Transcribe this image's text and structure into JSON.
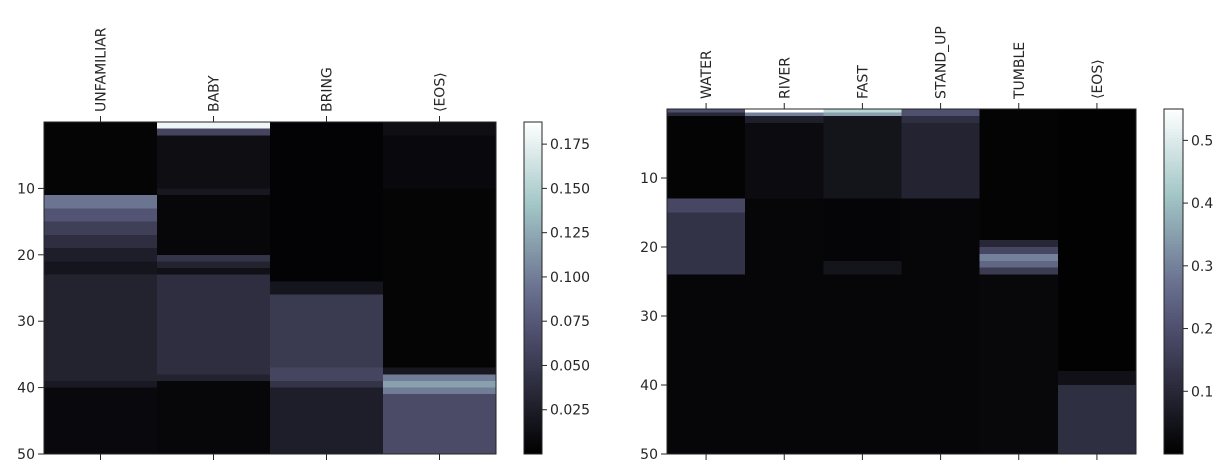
{
  "chart_data": [
    {
      "type": "heatmap",
      "title": "",
      "colormap": "bone",
      "x_categories": [
        "UNFAMILIAR",
        "BABY",
        "BRING",
        "⟨EOS⟩"
      ],
      "y_range": [
        0,
        50
      ],
      "y_ticks": [
        10,
        20,
        30,
        40,
        50
      ],
      "colorbar": {
        "range": [
          0,
          0.1875
        ],
        "ticks": [
          0.025,
          0.05,
          0.075,
          0.1,
          0.125,
          0.15,
          0.175
        ],
        "tick_labels": [
          "0.025",
          "0.050",
          "0.075",
          "0.100",
          "0.125",
          "0.150",
          "0.175"
        ]
      },
      "columns": [
        {
          "label": "UNFAMILIAR",
          "segments": [
            [
              0,
              11,
              0.004
            ],
            [
              11,
              13,
              0.095
            ],
            [
              13,
              15,
              0.072
            ],
            [
              15,
              17,
              0.055
            ],
            [
              17,
              19,
              0.04
            ],
            [
              19,
              21,
              0.026
            ],
            [
              21,
              23,
              0.018
            ],
            [
              23,
              39,
              0.03
            ],
            [
              39,
              40,
              0.022
            ],
            [
              40,
              50,
              0.008
            ]
          ]
        },
        {
          "label": "BABY",
          "segments": [
            [
              0,
              1,
              0.18
            ],
            [
              1,
              2,
              0.06
            ],
            [
              2,
              10,
              0.012
            ],
            [
              10,
              11,
              0.02
            ],
            [
              11,
              20,
              0.006
            ],
            [
              20,
              21,
              0.045
            ],
            [
              21,
              22,
              0.03
            ],
            [
              22,
              23,
              0.014
            ],
            [
              23,
              38,
              0.04
            ],
            [
              38,
              39,
              0.03
            ],
            [
              39,
              50,
              0.006
            ]
          ]
        },
        {
          "label": "BRING",
          "segments": [
            [
              0,
              24,
              0.003
            ],
            [
              24,
              26,
              0.018
            ],
            [
              26,
              37,
              0.05
            ],
            [
              37,
              39,
              0.06
            ],
            [
              39,
              40,
              0.045
            ],
            [
              40,
              50,
              0.026
            ]
          ]
        },
        {
          "label": "⟨EOS⟩",
          "segments": [
            [
              0,
              2,
              0.012
            ],
            [
              2,
              10,
              0.008
            ],
            [
              10,
              37,
              0.004
            ],
            [
              37,
              38,
              0.02
            ],
            [
              38,
              39,
              0.1
            ],
            [
              39,
              40,
              0.12
            ],
            [
              40,
              41,
              0.1
            ],
            [
              41,
              50,
              0.065
            ]
          ]
        }
      ]
    },
    {
      "type": "heatmap",
      "title": "",
      "colormap": "bone",
      "x_categories": [
        "WATER",
        "RIVER",
        "FAST",
        "STAND_UP",
        "TUMBLE",
        "⟨EOS⟩"
      ],
      "y_range": [
        0,
        50
      ],
      "y_ticks": [
        10,
        20,
        30,
        40,
        50
      ],
      "colorbar": {
        "range": [
          0,
          0.55
        ],
        "ticks": [
          0.1,
          0.2,
          0.3,
          0.4,
          0.5
        ],
        "tick_labels": [
          "0.1",
          "0.2",
          "0.3",
          "0.4",
          "0.5"
        ]
      },
      "columns": [
        {
          "label": "WATER",
          "segments": [
            [
              0,
              0.5,
              0.2
            ],
            [
              0.5,
              1,
              0.1
            ],
            [
              1,
              13,
              0.01
            ],
            [
              13,
              15,
              0.18
            ],
            [
              15,
              24,
              0.13
            ],
            [
              24,
              50,
              0.015
            ]
          ]
        },
        {
          "label": "RIVER",
          "segments": [
            [
              0,
              0.5,
              0.55
            ],
            [
              0.5,
              1,
              0.3
            ],
            [
              1,
              2,
              0.08
            ],
            [
              2,
              13,
              0.03
            ],
            [
              13,
              50,
              0.015
            ]
          ]
        },
        {
          "label": "FAST",
          "segments": [
            [
              0,
              0.5,
              0.45
            ],
            [
              0.5,
              1,
              0.35
            ],
            [
              1,
              13,
              0.05
            ],
            [
              13,
              22,
              0.012
            ],
            [
              22,
              24,
              0.05
            ],
            [
              24,
              50,
              0.015
            ]
          ]
        },
        {
          "label": "STAND_UP",
          "segments": [
            [
              0,
              1,
              0.2
            ],
            [
              1,
              2,
              0.12
            ],
            [
              2,
              13,
              0.09
            ],
            [
              13,
              50,
              0.015
            ]
          ]
        },
        {
          "label": "TUMBLE",
          "segments": [
            [
              0,
              19,
              0.01
            ],
            [
              19,
              20,
              0.1
            ],
            [
              20,
              21,
              0.18
            ],
            [
              21,
              22,
              0.3
            ],
            [
              22,
              23,
              0.25
            ],
            [
              23,
              24,
              0.15
            ],
            [
              24,
              50,
              0.02
            ]
          ]
        },
        {
          "label": "⟨EOS⟩",
          "segments": [
            [
              0,
              38,
              0.005
            ],
            [
              38,
              40,
              0.04
            ],
            [
              40,
              50,
              0.12
            ]
          ]
        }
      ]
    }
  ]
}
